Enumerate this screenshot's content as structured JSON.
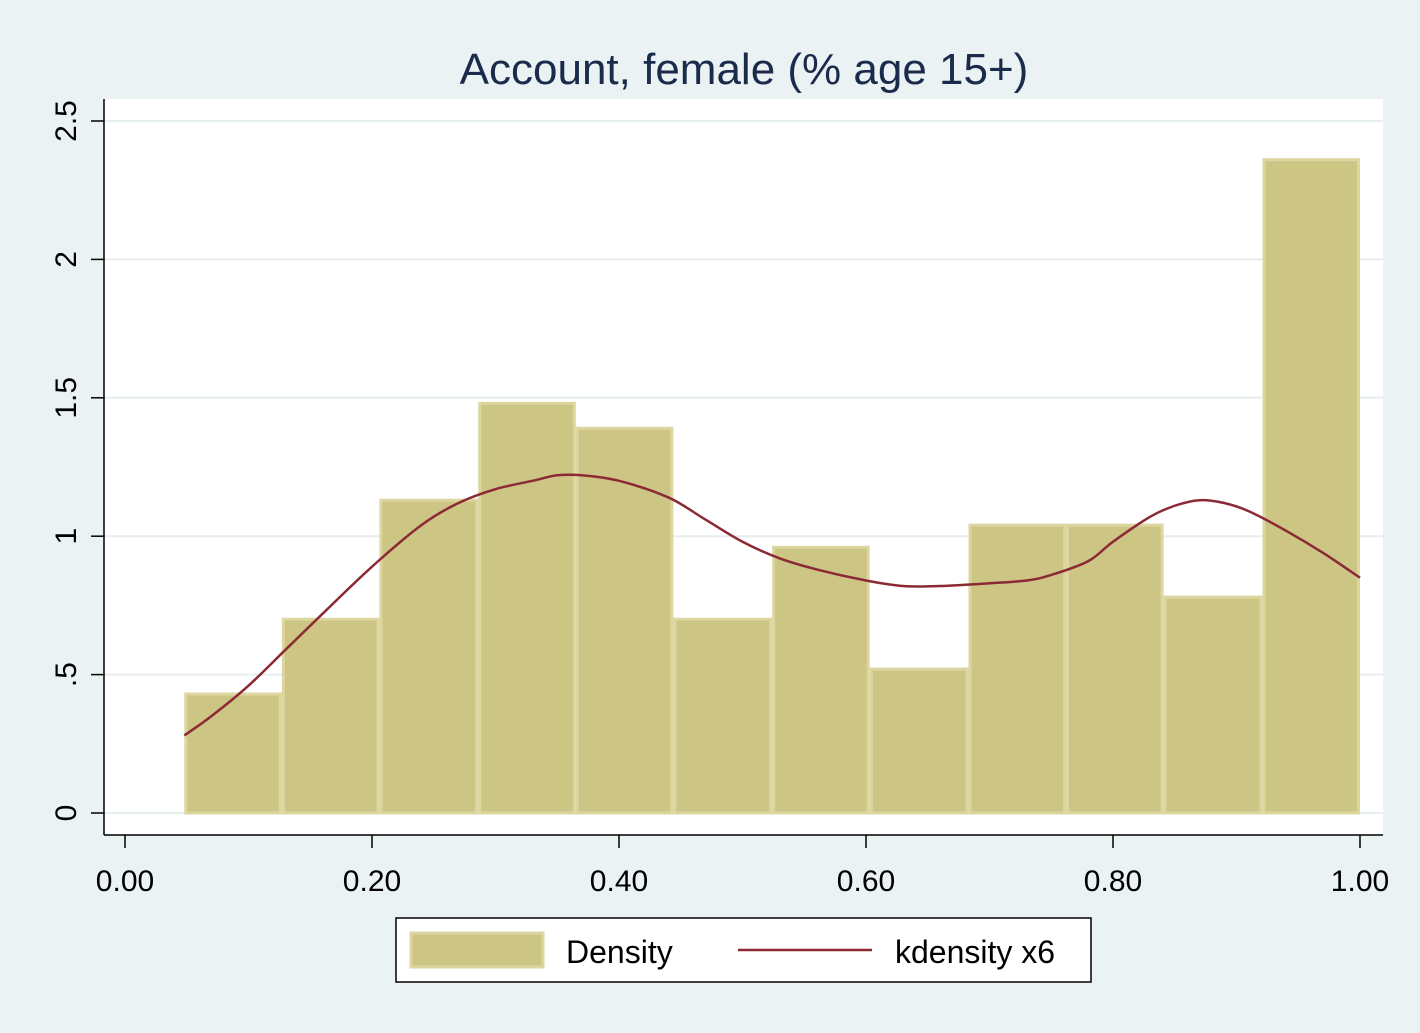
{
  "chart_data": {
    "type": "bar",
    "title": "Account, female (% age 15+)",
    "xlabel": "",
    "ylabel": "",
    "xlim": [
      0.0,
      1.0
    ],
    "ylim": [
      0,
      2.5
    ],
    "x_ticks": [
      "0.00",
      "0.20",
      "0.40",
      "0.60",
      "0.80",
      "1.00"
    ],
    "x_tick_values": [
      0.0,
      0.2,
      0.4,
      0.6,
      0.8,
      1.0
    ],
    "y_ticks": [
      "0",
      ".5",
      "1",
      "1.5",
      "2",
      "2.5"
    ],
    "y_tick_values": [
      0,
      0.5,
      1,
      1.5,
      2,
      2.5
    ],
    "grid": true,
    "legend_position": "bottom",
    "histogram": {
      "name": "Density",
      "bins": [
        {
          "start": 0.048,
          "end": 0.127,
          "density": 0.43
        },
        {
          "start": 0.127,
          "end": 0.206,
          "density": 0.7
        },
        {
          "start": 0.206,
          "end": 0.286,
          "density": 1.13
        },
        {
          "start": 0.286,
          "end": 0.365,
          "density": 1.48
        },
        {
          "start": 0.365,
          "end": 0.444,
          "density": 1.39
        },
        {
          "start": 0.444,
          "end": 0.524,
          "density": 0.7
        },
        {
          "start": 0.524,
          "end": 0.603,
          "density": 0.96
        },
        {
          "start": 0.603,
          "end": 0.683,
          "density": 0.52
        },
        {
          "start": 0.683,
          "end": 0.762,
          "density": 1.04
        },
        {
          "start": 0.762,
          "end": 0.841,
          "density": 1.04
        },
        {
          "start": 0.841,
          "end": 0.921,
          "density": 0.78
        },
        {
          "start": 0.921,
          "end": 1.0,
          "density": 2.36
        }
      ],
      "color": "#cdc584"
    },
    "kdensity": {
      "name": "kdensity x6",
      "color": "#8b2a35",
      "x": [
        0.048,
        0.07,
        0.1,
        0.13,
        0.16,
        0.2,
        0.24,
        0.27,
        0.3,
        0.33,
        0.35,
        0.37,
        0.4,
        0.44,
        0.47,
        0.5,
        0.53,
        0.56,
        0.6,
        0.63,
        0.66,
        0.7,
        0.73,
        0.75,
        0.78,
        0.8,
        0.83,
        0.85,
        0.87,
        0.89,
        0.91,
        0.94,
        0.97,
        1.0
      ],
      "y": [
        0.28,
        0.35,
        0.46,
        0.59,
        0.72,
        0.89,
        1.04,
        1.12,
        1.17,
        1.2,
        1.22,
        1.22,
        1.2,
        1.14,
        1.06,
        0.98,
        0.92,
        0.88,
        0.84,
        0.82,
        0.82,
        0.83,
        0.84,
        0.86,
        0.91,
        0.98,
        1.07,
        1.11,
        1.13,
        1.12,
        1.09,
        1.02,
        0.94,
        0.85
      ]
    }
  }
}
